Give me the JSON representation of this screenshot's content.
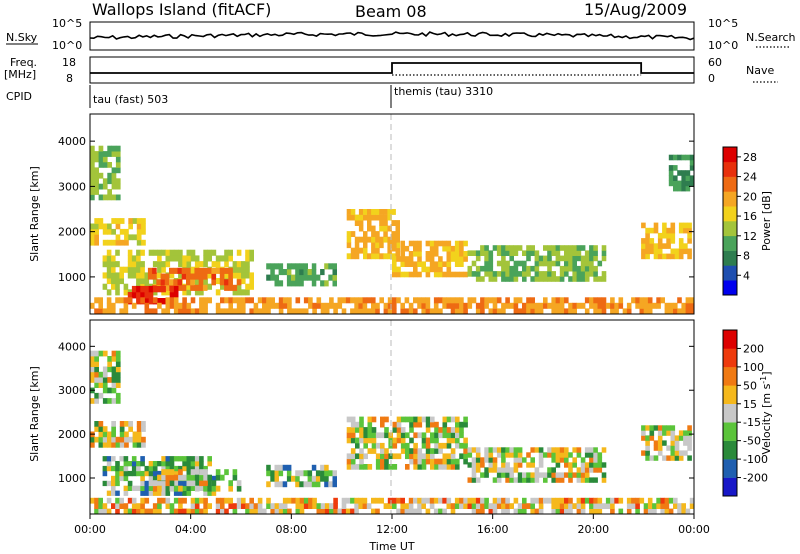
{
  "header": {
    "site": "Wallops Island (fitACF)",
    "beam": "Beam 08",
    "date": "15/Aug/2009"
  },
  "top_panels": {
    "nsky_label": "N.Sky",
    "nsky_ticks": [
      "10^5",
      "10^0"
    ],
    "nsearch_label": "N.Search",
    "nsearch_ticks": [
      "10^5",
      "10^0"
    ],
    "freq_label": "Freq.",
    "freq_unit": "[MHz]",
    "freq_ticks": [
      "18",
      "8"
    ],
    "nave_label": "Nave",
    "nave_ticks": [
      "60",
      "0"
    ],
    "cpid_label": "CPID",
    "cpid_segments": [
      {
        "name": "tau (fast) 503",
        "start_h": 0,
        "end_h": 12
      },
      {
        "name": "themis (tau) 3310",
        "start_h": 12,
        "end_h": 24
      }
    ]
  },
  "time_axis": {
    "label": "Time UT",
    "ticks": [
      "00:00",
      "04:00",
      "08:00",
      "12:00",
      "16:00",
      "20:00",
      "00:00"
    ]
  },
  "chart_data": [
    {
      "type": "heatmap",
      "name": "power",
      "ylabel": "Slant Range [km]",
      "yticks": [
        "4000",
        "3000",
        "2000",
        "1000"
      ],
      "ylim": [
        180,
        4600
      ],
      "xlim_hours": [
        0,
        24
      ],
      "colorbar_label": "Power [dB]",
      "colorbar_ticks": [
        "28",
        "24",
        "20",
        "16",
        "12",
        "8",
        "4"
      ],
      "colorbar_range": [
        0,
        30
      ],
      "colors": [
        "#0000ee",
        "#1f4fb0",
        "#2e7d4f",
        "#4aa35a",
        "#a3c43a",
        "#f2d21c",
        "#f5a623",
        "#ee6a13",
        "#e8300c",
        "#dd0000"
      ],
      "bands": [
        {
          "t0": 0.0,
          "t1": 1.2,
          "r0": 2700,
          "r1": 3900,
          "level": 12
        },
        {
          "t0": 0.0,
          "t1": 2.2,
          "r0": 1700,
          "r1": 2300,
          "level": 16
        },
        {
          "t0": 0.5,
          "t1": 6.5,
          "r0": 600,
          "r1": 1600,
          "level": 14
        },
        {
          "t0": 2.3,
          "t1": 6.0,
          "r0": 700,
          "r1": 1200,
          "level": 22
        },
        {
          "t0": 1.5,
          "t1": 3.5,
          "r0": 400,
          "r1": 800,
          "level": 26
        },
        {
          "t0": 0.0,
          "t1": 24.0,
          "r0": 180,
          "r1": 550,
          "level": 20
        },
        {
          "t0": 7.0,
          "t1": 9.8,
          "r0": 800,
          "r1": 1300,
          "level": 10
        },
        {
          "t0": 10.2,
          "t1": 12.3,
          "r0": 1400,
          "r1": 2500,
          "level": 18
        },
        {
          "t0": 12.0,
          "t1": 15.0,
          "r0": 1000,
          "r1": 1800,
          "level": 18
        },
        {
          "t0": 15.0,
          "t1": 20.5,
          "r0": 900,
          "r1": 1700,
          "level": 12
        },
        {
          "t0": 21.9,
          "t1": 23.9,
          "r0": 1400,
          "r1": 2200,
          "level": 18
        },
        {
          "t0": 23.0,
          "t1": 24.0,
          "r0": 2900,
          "r1": 3700,
          "level": 8
        }
      ]
    },
    {
      "type": "heatmap",
      "name": "velocity",
      "ylabel": "Slant Range [km]",
      "yticks": [
        "4000",
        "3000",
        "2000",
        "1000"
      ],
      "ylim": [
        180,
        4600
      ],
      "xlim_hours": [
        0,
        24
      ],
      "colorbar_label": "Velocity [m s^-1]",
      "colorbar_ticks": [
        "200",
        "100",
        "50",
        "15",
        "-15",
        "-50",
        "-100",
        "-200"
      ],
      "colors": [
        "#1818c8",
        "#1f5fb0",
        "#2a8a3a",
        "#5bc43a",
        "#c8c8c8",
        "#f5b81c",
        "#f07a13",
        "#ee3a0c",
        "#dd0000"
      ],
      "bands": [
        {
          "t0": 0.0,
          "t1": 1.2,
          "r0": 2700,
          "r1": 3900,
          "level": 4
        },
        {
          "t0": 0.0,
          "t1": 2.2,
          "r0": 1700,
          "r1": 2300,
          "level": 4
        },
        {
          "t0": 0.5,
          "t1": 5.0,
          "r0": 600,
          "r1": 1500,
          "level": 3
        },
        {
          "t0": 2.5,
          "t1": 6.0,
          "r0": 700,
          "r1": 1200,
          "level": 4
        },
        {
          "t0": 0.0,
          "t1": 24.0,
          "r0": 180,
          "r1": 550,
          "level": 5
        },
        {
          "t0": 7.0,
          "t1": 9.8,
          "r0": 800,
          "r1": 1300,
          "level": 3
        },
        {
          "t0": 10.2,
          "t1": 15.0,
          "r0": 1200,
          "r1": 2400,
          "level": 4
        },
        {
          "t0": 15.0,
          "t1": 20.5,
          "r0": 900,
          "r1": 1700,
          "level": 4
        },
        {
          "t0": 21.9,
          "t1": 23.9,
          "r0": 1400,
          "r1": 2200,
          "level": 4
        }
      ]
    }
  ]
}
